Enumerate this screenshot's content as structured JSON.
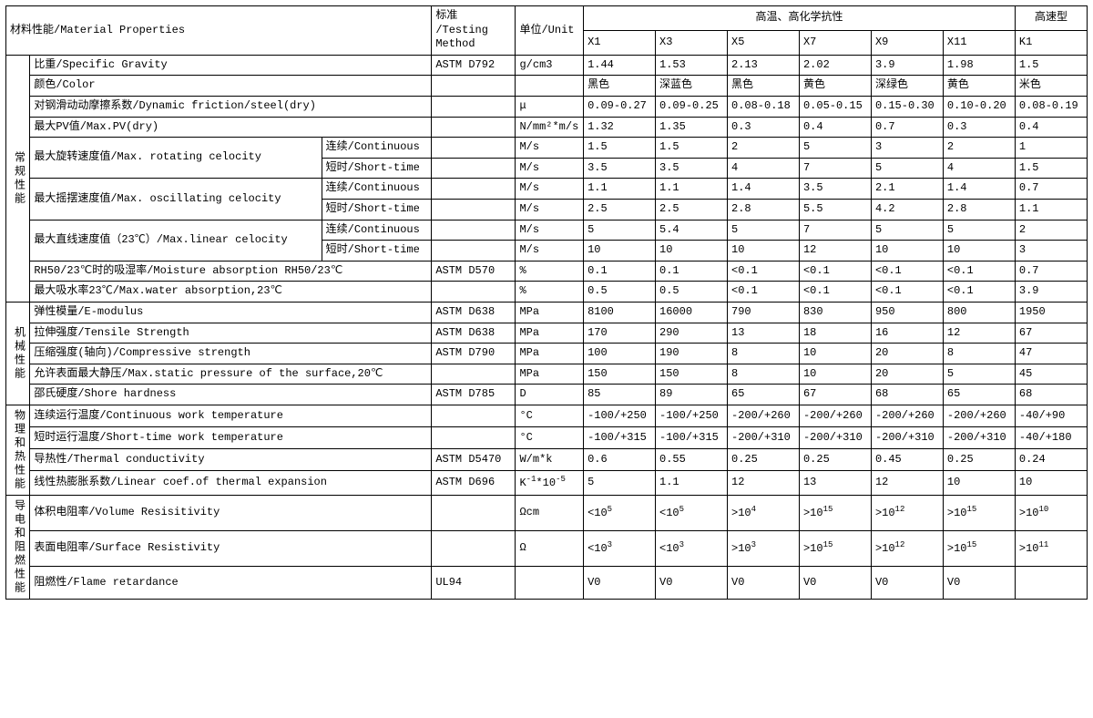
{
  "header": {
    "material_properties": "材料性能/Material Properties",
    "testing_method": "标准\n/Testing\nMethod",
    "unit": "单位/Unit",
    "group_high_temp": "高温、高化学抗性",
    "group_high_speed": "高速型",
    "cols": [
      "X1",
      "X3",
      "X5",
      "X7",
      "X9",
      "X11",
      "K1"
    ]
  },
  "cat": {
    "general": "常规性能",
    "mech": "机械性能",
    "phys": "物理和热性能",
    "elec": "导电和阻燃性能"
  },
  "sub": {
    "continuous": "连续/Continuous",
    "short_time": "短时/Short-time"
  },
  "rows": {
    "specific_gravity": {
      "label": "比重/Specific Gravity",
      "method": "ASTM D792",
      "unit": "g/cm3",
      "v": [
        "1.44",
        "1.53",
        "2.13",
        "2.02",
        "3.9",
        "1.98",
        "1.5"
      ]
    },
    "color": {
      "label": "颜色/Color",
      "method": "",
      "unit": "",
      "v": [
        "黑色",
        "深蓝色",
        "黑色",
        "黄色",
        "深绿色",
        "黄色",
        "米色"
      ]
    },
    "dyn_friction": {
      "label": "对钢滑动动摩擦系数/Dynamic friction/steel(dry)",
      "method": "",
      "unit": "μ",
      "v": [
        "0.09-0.27",
        "0.09-0.25",
        "0.08-0.18",
        "0.05-0.15",
        "0.15-0.30",
        "0.10-0.20",
        "0.08-0.19"
      ]
    },
    "max_pv": {
      "label": "最大PV值/Max.PV(dry)",
      "method": "",
      "unit": "N/mm²*m/s",
      "v": [
        "1.32",
        "1.35",
        "0.3",
        "0.4",
        "0.7",
        "0.3",
        "0.4"
      ]
    },
    "rot_vel": {
      "label": "最大旋转速度值/Max. rotating celocity",
      "c": {
        "unit": "M/s",
        "v": [
          "1.5",
          "1.5",
          "2",
          "5",
          "3",
          "2",
          "1"
        ]
      },
      "s": {
        "unit": "M/s",
        "v": [
          "3.5",
          "3.5",
          "4",
          "7",
          "5",
          "4",
          "1.5"
        ]
      }
    },
    "osc_vel": {
      "label": "最大摇摆速度值/Max. oscillating celocity",
      "c": {
        "unit": "M/s",
        "v": [
          "1.1",
          "1.1",
          "1.4",
          "3.5",
          "2.1",
          "1.4",
          "0.7"
        ]
      },
      "s": {
        "unit": "M/s",
        "v": [
          "2.5",
          "2.5",
          "2.8",
          "5.5",
          "4.2",
          "2.8",
          "1.1"
        ]
      }
    },
    "lin_vel": {
      "label": "最大直线速度值（23℃）/Max.linear celocity",
      "c": {
        "unit": "M/s",
        "v": [
          "5",
          "5.4",
          "5",
          "7",
          "5",
          "5",
          "2"
        ]
      },
      "s": {
        "unit": "M/s",
        "v": [
          "10",
          "10",
          "10",
          "12",
          "10",
          "10",
          "3"
        ]
      }
    },
    "moisture_rh50": {
      "label": "RH50/23℃时的吸湿率/Moisture absorption RH50/23℃",
      "method": "ASTM D570",
      "unit": "%",
      "v": [
        "0.1",
        "0.1",
        "<0.1",
        "<0.1",
        "<0.1",
        "<0.1",
        "0.7"
      ]
    },
    "max_water": {
      "label": "最大吸水率23℃/Max.water absorption,23℃",
      "method": "",
      "unit": "%",
      "v": [
        "0.5",
        "0.5",
        "<0.1",
        "<0.1",
        "<0.1",
        "<0.1",
        "3.9"
      ]
    },
    "e_modulus": {
      "label": "弹性模量/E-modulus",
      "method": "ASTM D638",
      "unit": "MPa",
      "v": [
        "8100",
        "16000",
        "790",
        "830",
        "950",
        "800",
        "1950"
      ]
    },
    "tensile": {
      "label": "拉伸强度/Tensile Strength",
      "method": "ASTM D638",
      "unit": "MPa",
      "v": [
        "170",
        "290",
        "13",
        "18",
        "16",
        "12",
        "67"
      ]
    },
    "compressive": {
      "label": "压缩强度(轴向)/Compressive strength",
      "method": "ASTM D790",
      "unit": "MPa",
      "v": [
        "100",
        "190",
        "8",
        "10",
        "20",
        "8",
        "47"
      ]
    },
    "max_static_pressure": {
      "label": "允许表面最大静压/Max.static pressure of the surface,20℃",
      "method": "",
      "unit": "MPa",
      "v": [
        "150",
        "150",
        "8",
        "10",
        "20",
        "5",
        "45"
      ]
    },
    "shore": {
      "label": "邵氏硬度/Shore hardness",
      "method": "ASTM D785",
      "unit": "D",
      "v": [
        "85",
        "89",
        "65",
        "67",
        "68",
        "65",
        "68"
      ]
    },
    "cont_temp": {
      "label": "连续运行温度/Continuous work temperature",
      "method": "",
      "unit": "°C",
      "v": [
        "-100/+250",
        "-100/+250",
        "-200/+260",
        "-200/+260",
        "-200/+260",
        "-200/+260",
        "-40/+90"
      ]
    },
    "short_temp": {
      "label": "短时运行温度/Short-time work temperature",
      "method": "",
      "unit": "°C",
      "v": [
        "-100/+315",
        "-100/+315",
        "-200/+310",
        "-200/+310",
        "-200/+310",
        "-200/+310",
        "-40/+180"
      ]
    },
    "thermal_cond": {
      "label": "导热性/Thermal conductivity",
      "method": "ASTM D5470",
      "unit": "W/m*k",
      "v": [
        "0.6",
        "0.55",
        "0.25",
        "0.25",
        "0.45",
        "0.25",
        "0.24"
      ]
    },
    "lin_coef": {
      "label": "线性热膨胀系数/Linear coef.of thermal expansion",
      "method": "ASTM D696",
      "unit_html": "K<sup>-1</sup>*10<sup>-5</sup>",
      "v": [
        "5",
        "1.1",
        "12",
        "13",
        "12",
        "10",
        "10"
      ]
    },
    "vol_res": {
      "label": "体积电阻率/Volume Resisitivity",
      "method": "",
      "unit": "Ωcm",
      "v_html": [
        "<10<sup>5</sup>",
        "<10<sup>5</sup>",
        ">10<sup>4</sup>",
        ">10<sup>15</sup>",
        ">10<sup>12</sup>",
        ">10<sup>15</sup>",
        ">10<sup>10</sup>"
      ]
    },
    "surf_res": {
      "label": "表面电阻率/Surface Resistivity",
      "method": "",
      "unit": "Ω",
      "v_html": [
        "<10<sup>3</sup>",
        "<10<sup>3</sup>",
        ">10<sup>3</sup>",
        ">10<sup>15</sup>",
        ">10<sup>12</sup>",
        ">10<sup>15</sup>",
        ">10<sup>11</sup>"
      ]
    },
    "flame": {
      "label": "阻燃性/Flame retardance",
      "method": "UL94",
      "unit": "",
      "v": [
        "V0",
        "V0",
        "V0",
        "V0",
        "V0",
        "V0",
        ""
      ]
    }
  }
}
